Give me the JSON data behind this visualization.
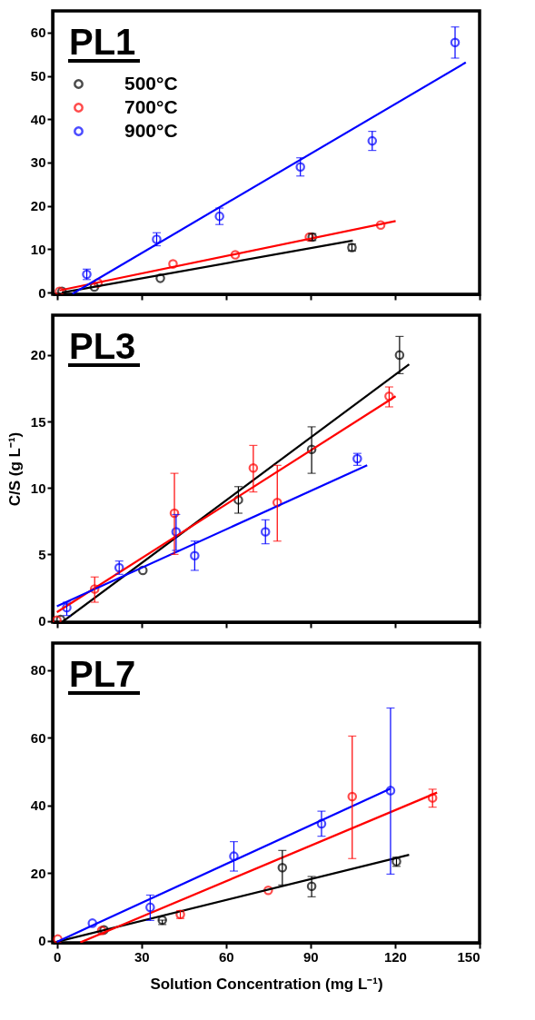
{
  "chart_data": [
    {
      "type": "scatter",
      "title": "PL1",
      "xlim": [
        -1.5,
        150
      ],
      "xticks": [
        0,
        30,
        60,
        90,
        120,
        150
      ],
      "ylim": [
        -0.4,
        65
      ],
      "yticks": [
        0,
        10,
        20,
        30,
        40,
        50,
        60
      ],
      "tick_labels": "y",
      "legend": "top left",
      "grid": false,
      "series": [
        {
          "name": "500°C",
          "marker": "circle",
          "color": "#000000",
          "x": [
            1.8,
            13.3,
            36.7,
            90.6,
            104.7
          ],
          "values": [
            0.3,
            1.3,
            3.3,
            12.8,
            10.4
          ],
          "errors": [
            null,
            null,
            null,
            0.8,
            0.8
          ]
        },
        {
          "name": "700°C",
          "marker": "circle",
          "color": "#ff0000",
          "x": [
            0.9,
            14.6,
            41.2,
            63.3,
            89.6,
            114.9
          ],
          "values": [
            0.3,
            2.2,
            6.6,
            8.7,
            12.8,
            15.6
          ]
        },
        {
          "name": "900°C",
          "marker": "circle",
          "color": "#0000ff",
          "x": [
            10.6,
            35.4,
            57.7,
            86.4,
            111.9,
            141.3
          ],
          "values": [
            4.2,
            12.3,
            17.6,
            29.0,
            35.0,
            57.7
          ],
          "errors": [
            1.2,
            1.5,
            1.9,
            2.1,
            2.2,
            3.6
          ]
        },
        {
          "type": "line",
          "color": "#000000",
          "x": [
            1.8,
            105
          ],
          "values": [
            0.0,
            12.0
          ]
        },
        {
          "type": "line",
          "color": "#ff0000",
          "x": [
            0.9,
            120.2
          ],
          "values": [
            0.5,
            16.5
          ]
        },
        {
          "type": "line",
          "color": "#0000ff",
          "x": [
            5.5,
            145.1
          ],
          "values": [
            -0.3,
            53.1
          ]
        }
      ]
    },
    {
      "type": "scatter",
      "title": "PL3",
      "ylabel": "C/S (g L⁻¹)",
      "xlim": [
        -1.5,
        150
      ],
      "xticks": [
        0,
        30,
        60,
        90,
        120,
        150
      ],
      "ylim": [
        -0.1,
        23
      ],
      "yticks": [
        0,
        5,
        10,
        15,
        20
      ],
      "tick_labels": "y",
      "legend": "top left",
      "grid": false,
      "series": [
        {
          "name": "500°C",
          "marker": "circle",
          "color": "#000000",
          "x": [
            1.3,
            30.5,
            64.4,
            90.4,
            121.6
          ],
          "values": [
            0.1,
            3.8,
            9.1,
            12.9,
            20.0
          ],
          "errors": [
            null,
            null,
            1.0,
            [
              11.1,
              14.6
            ],
            [
              18.6,
              21.4
            ]
          ]
        },
        {
          "name": "700°C",
          "marker": "circle",
          "color": "#ff0000",
          "x": [
            0,
            13.4,
            41.7,
            69.7,
            78.2,
            117.9
          ],
          "values": [
            0.05,
            2.4,
            8.1,
            11.5,
            8.9,
            16.9
          ],
          "errors": [
            null,
            [
              1.4,
              3.3
            ],
            [
              5.0,
              11.1
            ],
            [
              9.7,
              13.2
            ],
            [
              6.0,
              11.7
            ],
            [
              16.1,
              17.6
            ]
          ]
        },
        {
          "name": "900°C",
          "marker": "circle",
          "color": "#0000ff",
          "x": [
            3.5,
            22.1,
            42.3,
            48.9,
            74.0,
            106.6
          ],
          "values": [
            1.0,
            4.0,
            6.7,
            4.9,
            6.7,
            12.2
          ],
          "errors": [
            [
              0.4,
              1.4
            ],
            [
              3.5,
              4.5
            ],
            [
              5.3,
              8.0
            ],
            [
              3.8,
              6.0
            ],
            [
              5.8,
              7.6
            ],
            [
              11.7,
              12.6
            ]
          ]
        },
        {
          "type": "line",
          "color": "#000000",
          "x": [
            1.8,
            125
          ],
          "values": [
            -0.1,
            19.3
          ]
        },
        {
          "type": "line",
          "color": "#ff0000",
          "x": [
            0,
            120.2
          ],
          "values": [
            0.65,
            16.9
          ]
        },
        {
          "type": "line",
          "color": "#0000ff",
          "x": [
            0,
            110.1
          ],
          "values": [
            1.1,
            11.7
          ]
        }
      ]
    },
    {
      "type": "scatter",
      "title": "PL7",
      "xlabel": "Solution Concentration (mg L⁻¹)",
      "xlim": [
        -1.5,
        150
      ],
      "xticks": [
        0,
        30,
        60,
        90,
        120,
        150
      ],
      "ylim": [
        -0.6,
        88
      ],
      "yticks": [
        0,
        20,
        40,
        60,
        80
      ],
      "legend": "top left",
      "grid": false,
      "series": [
        {
          "name": "500°C",
          "marker": "circle",
          "color": "#000000",
          "x": [
            16.7,
            37.4,
            80.0,
            90.4,
            120.5
          ],
          "values": [
            3.2,
            6.1,
            21.6,
            16.1,
            23.4
          ],
          "errors": [
            null,
            [
              4.8,
              6.1
            ],
            [
              16.5,
              26.7
            ],
            [
              13.0,
              19.0
            ],
            [
              22.0,
              24.7
            ]
          ]
        },
        {
          "name": "700°C",
          "marker": "circle",
          "color": "#ff0000",
          "x": [
            0.3,
            15.9,
            43.8,
            75.0,
            104.8,
            133.3
          ],
          "values": [
            0.5,
            3.0,
            7.8,
            14.9,
            42.6,
            42.2
          ],
          "errors": [
            null,
            null,
            [
              6.6,
              8.9
            ],
            null,
            [
              24.3,
              60.5
            ],
            [
              39.5,
              44.8
            ]
          ]
        },
        {
          "name": "900°C",
          "marker": "circle",
          "color": "#0000ff",
          "x": [
            12.6,
            33.1,
            62.8,
            93.9,
            118.4
          ],
          "values": [
            5.2,
            9.9,
            25.0,
            34.6,
            44.4
          ],
          "errors": [
            null,
            [
              6.0,
              13.5
            ],
            [
              20.6,
              29.3
            ],
            [
              30.9,
              38.3
            ],
            [
              19.7,
              68.8
            ]
          ]
        },
        {
          "type": "line",
          "color": "#000000",
          "x": [
            0,
            125
          ],
          "values": [
            -0.3,
            25.4
          ]
        },
        {
          "type": "line",
          "color": "#ff0000",
          "x": [
            8.3,
            134.9
          ],
          "values": [
            -0.5,
            43.8
          ]
        },
        {
          "type": "line",
          "color": "#0000ff",
          "x": [
            0,
            118.4
          ],
          "values": [
            -0.3,
            45.0
          ]
        }
      ]
    }
  ]
}
